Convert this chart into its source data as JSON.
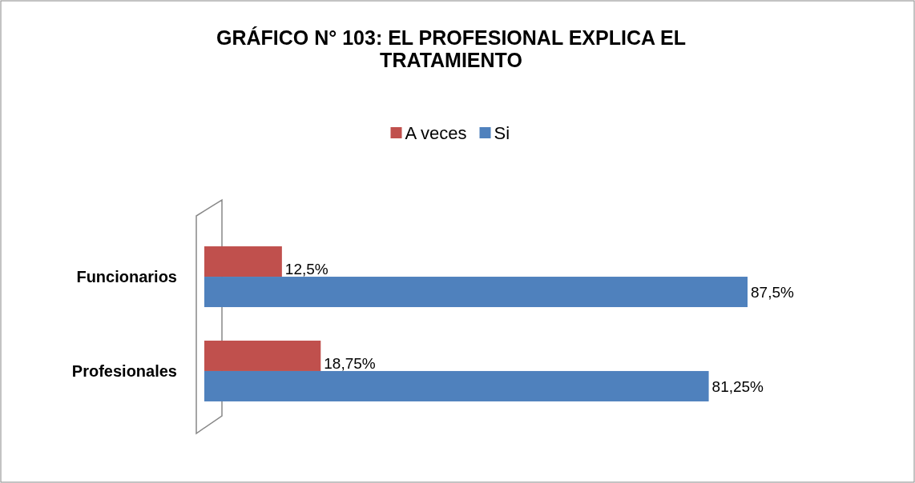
{
  "chart_data": {
    "type": "bar",
    "orientation": "horizontal",
    "title": "GRÁFICO N° 103: EL PROFESIONAL EXPLICA EL TRATAMIENTO",
    "categories": [
      "Funcionarios",
      "Profesionales"
    ],
    "series": [
      {
        "name": "A veces",
        "color": "#c0504d",
        "values": [
          12.5,
          18.75
        ],
        "value_labels": [
          "12,5%",
          "18,75%"
        ]
      },
      {
        "name": "Si",
        "color": "#4f81bd",
        "values": [
          87.5,
          81.25
        ],
        "value_labels": [
          "87,5%",
          "81,25%"
        ]
      }
    ],
    "legend": "top",
    "tick_labels": "y"
  }
}
